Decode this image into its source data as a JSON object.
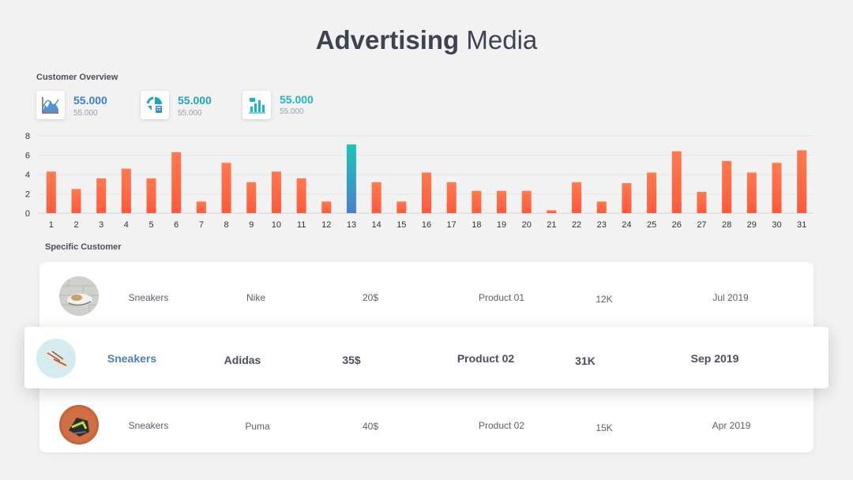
{
  "title": {
    "bold": "Advertising",
    "light": "Media"
  },
  "overview": {
    "label": "Customer Overview",
    "kpis": [
      {
        "value": "55.000",
        "sub": "55.000",
        "icon": "area-chart-icon",
        "color": "#3a7fc9"
      },
      {
        "value": "55.000",
        "sub": "55.000",
        "icon": "pie-calculator-icon",
        "color": "#1aa8b8"
      },
      {
        "value": "55.000",
        "sub": "55.000",
        "icon": "bar-chart-icon",
        "color": "#19b7c9"
      }
    ]
  },
  "chart_data": {
    "type": "bar",
    "categories": [
      "1",
      "2",
      "3",
      "4",
      "5",
      "6",
      "7",
      "8",
      "9",
      "10",
      "11",
      "12",
      "13",
      "14",
      "15",
      "16",
      "17",
      "18",
      "19",
      "20",
      "21",
      "22",
      "23",
      "24",
      "25",
      "26",
      "27",
      "28",
      "29",
      "30",
      "31"
    ],
    "values": [
      4.3,
      2.5,
      3.6,
      4.6,
      3.6,
      6.3,
      1.2,
      5.2,
      3.2,
      4.3,
      3.6,
      1.2,
      7.1,
      3.2,
      1.2,
      4.2,
      3.2,
      2.3,
      2.3,
      2.3,
      0.3,
      3.2,
      1.2,
      3.1,
      4.2,
      6.4,
      2.2,
      5.4,
      4.2,
      5.2,
      6.5
    ],
    "highlight_index": 12,
    "yticks": [
      0,
      2,
      4,
      6,
      8
    ],
    "ylim": [
      0,
      8
    ],
    "colors": {
      "bar": "#ff6a45",
      "bar_light": "#ff9a5c",
      "highlight_top": "#1cc6b6",
      "highlight_bottom": "#4a7fd1"
    },
    "title": "",
    "xlabel": "",
    "ylabel": "",
    "grid": true
  },
  "specific": {
    "label": "Specific Customer",
    "rows": [
      {
        "category": "Sneakers",
        "brand": "Nike",
        "price": "20$",
        "product": "Product 01",
        "count": "12K",
        "date": "Jul 2019"
      },
      {
        "category": "Sneakers",
        "brand": "Adidas",
        "price": "35$",
        "product": "Product 02",
        "count": "31K",
        "date": "Sep 2019"
      },
      {
        "category": "Sneakers",
        "brand": "Puma",
        "price": "40$",
        "product": "Product 02",
        "count": "15K",
        "date": "Apr 2019"
      }
    ],
    "highlight_color": "#4a7fc1"
  }
}
